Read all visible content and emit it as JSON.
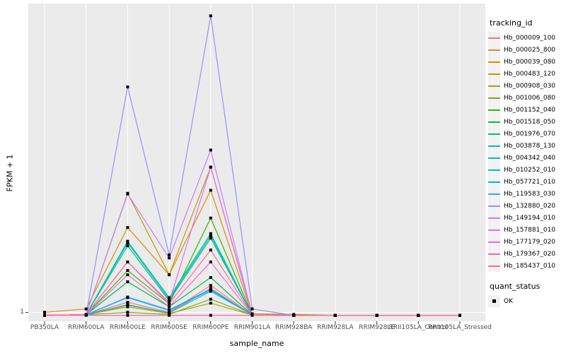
{
  "chart_data": {
    "type": "line",
    "title": "",
    "xlabel": "sample_name",
    "ylabel": "FPKM + 1",
    "x_categories": [
      "PB350LA",
      "RRIM600LA",
      "RRIM600LE",
      "RRIM600SE",
      "RRIM600PE",
      "RRIM901LA",
      "RRIM928BA",
      "RRIM928LA",
      "RRIM928LE",
      "RRII105LA_Control",
      "RRII105LA_Stressed"
    ],
    "y_tick_label": "1",
    "y_axis_note": "log-style axis; only the value 1 is labeled at the baseline gridline. Series values are fractions of panel height above the baseline (0 = at the '1' line, 1 = panel top).",
    "panel_background": "#EBEBEB",
    "grid_color": "#FFFFFF",
    "tick_color": "#333333",
    "point_color": "#000000",
    "point_shape": "square",
    "legend_position": "right",
    "grid": "vertical line per category plus one horizontal line at y=1",
    "series": [
      {
        "name": "Hb_000009_100",
        "color": "#F8766D",
        "values": [
          0.002,
          0.004,
          0.045,
          0.012,
          0.1,
          0.003,
          0.002,
          0.002,
          0.002,
          0.002,
          0.002
        ]
      },
      {
        "name": "Hb_000025_800",
        "color": "#EA8331",
        "values": [
          0.002,
          0.004,
          0.035,
          0.01,
          0.09,
          0.003,
          0.002,
          0.002,
          0.002,
          0.002,
          0.002
        ]
      },
      {
        "name": "Hb_000039_080",
        "color": "#D89000",
        "values": [
          0.012,
          0.023,
          0.29,
          0.135,
          0.412,
          0.003,
          0.002,
          0.002,
          0.002,
          0.002,
          0.002
        ]
      },
      {
        "name": "Hb_000483_120",
        "color": "#C09B00",
        "values": [
          0.002,
          0.004,
          0.402,
          0.135,
          0.488,
          0.007,
          0.005,
          0.002,
          0.002,
          0.002,
          0.002
        ]
      },
      {
        "name": "Hb_000908_030",
        "color": "#A3A500",
        "values": [
          0.002,
          0.004,
          0.03,
          0.008,
          0.042,
          0.003,
          0.002,
          0.002,
          0.002,
          0.002,
          0.002
        ]
      },
      {
        "name": "Hb_001006_080",
        "color": "#7CAE00",
        "values": [
          0.002,
          0.004,
          0.012,
          0.005,
          0.055,
          0.003,
          0.002,
          0.002,
          0.002,
          0.002,
          0.002
        ]
      },
      {
        "name": "Hb_001152_040",
        "color": "#39B600",
        "values": [
          0.002,
          0.004,
          0.149,
          0.04,
          0.321,
          0.003,
          0.002,
          0.002,
          0.002,
          0.002,
          0.002
        ]
      },
      {
        "name": "Hb_001518_050",
        "color": "#00BB4E",
        "values": [
          0.002,
          0.004,
          0.112,
          0.03,
          0.126,
          0.003,
          0.002,
          0.002,
          0.002,
          0.002,
          0.002
        ]
      },
      {
        "name": "Hb_001976_070",
        "color": "#00BF7D",
        "values": [
          0.002,
          0.004,
          0.23,
          0.05,
          0.255,
          0.003,
          0.002,
          0.002,
          0.002,
          0.002,
          0.002
        ]
      },
      {
        "name": "Hb_003878_130",
        "color": "#00C1A3",
        "values": [
          0.002,
          0.004,
          0.24,
          0.055,
          0.263,
          0.003,
          0.002,
          0.002,
          0.002,
          0.002,
          0.002
        ]
      },
      {
        "name": "Hb_004342_040",
        "color": "#00BFC4",
        "values": [
          0.002,
          0.004,
          0.245,
          0.06,
          0.27,
          0.003,
          0.002,
          0.002,
          0.002,
          0.002,
          0.002
        ]
      },
      {
        "name": "Hb_010252_010",
        "color": "#00BAE0",
        "values": [
          0.002,
          0.004,
          0.037,
          0.01,
          0.081,
          0.003,
          0.002,
          0.002,
          0.002,
          0.002,
          0.002
        ]
      },
      {
        "name": "Hb_057721_010",
        "color": "#00B0F6",
        "values": [
          0.002,
          0.004,
          0.06,
          0.018,
          0.085,
          0.003,
          0.002,
          0.002,
          0.002,
          0.002,
          0.002
        ]
      },
      {
        "name": "Hb_119583_030",
        "color": "#35A2FF",
        "values": [
          0.002,
          0.004,
          0.062,
          0.02,
          0.088,
          0.003,
          0.002,
          0.002,
          0.002,
          0.002,
          0.002
        ]
      },
      {
        "name": "Hb_132880_020",
        "color": "#9590FF",
        "values": [
          0.002,
          0.004,
          0.751,
          0.2,
          0.984,
          0.023,
          0.002,
          0.002,
          0.002,
          0.002,
          0.002
        ]
      },
      {
        "name": "Hb_149194_010",
        "color": "#C77CFF",
        "values": [
          0.002,
          0.004,
          0.4,
          0.19,
          0.544,
          0.003,
          0.002,
          0.002,
          0.002,
          0.002,
          0.002
        ]
      },
      {
        "name": "Hb_157881_010",
        "color": "#E76BF3",
        "values": [
          0.002,
          0.004,
          0.177,
          0.045,
          0.488,
          0.003,
          0.002,
          0.002,
          0.002,
          0.002,
          0.002
        ]
      },
      {
        "name": "Hb_177179_020",
        "color": "#FA62DB",
        "values": [
          0.002,
          0.004,
          0.135,
          0.03,
          0.177,
          0.003,
          0.002,
          0.002,
          0.002,
          0.002,
          0.002
        ]
      },
      {
        "name": "Hb_179367_020",
        "color": "#FF62BC",
        "values": [
          0.002,
          0.002,
          0.002,
          0.002,
          0.002,
          0.002,
          0.002,
          0.002,
          0.002,
          0.002,
          0.002
        ]
      },
      {
        "name": "Hb_185437_010",
        "color": "#FF6A98",
        "values": [
          0.002,
          0.004,
          0.177,
          0.04,
          0.216,
          0.003,
          0.002,
          0.002,
          0.002,
          0.002,
          0.002
        ]
      }
    ]
  },
  "legend": {
    "tracking_id_title": "tracking_id",
    "quant_status_title": "quant_status",
    "quant_status_label": "OK"
  }
}
